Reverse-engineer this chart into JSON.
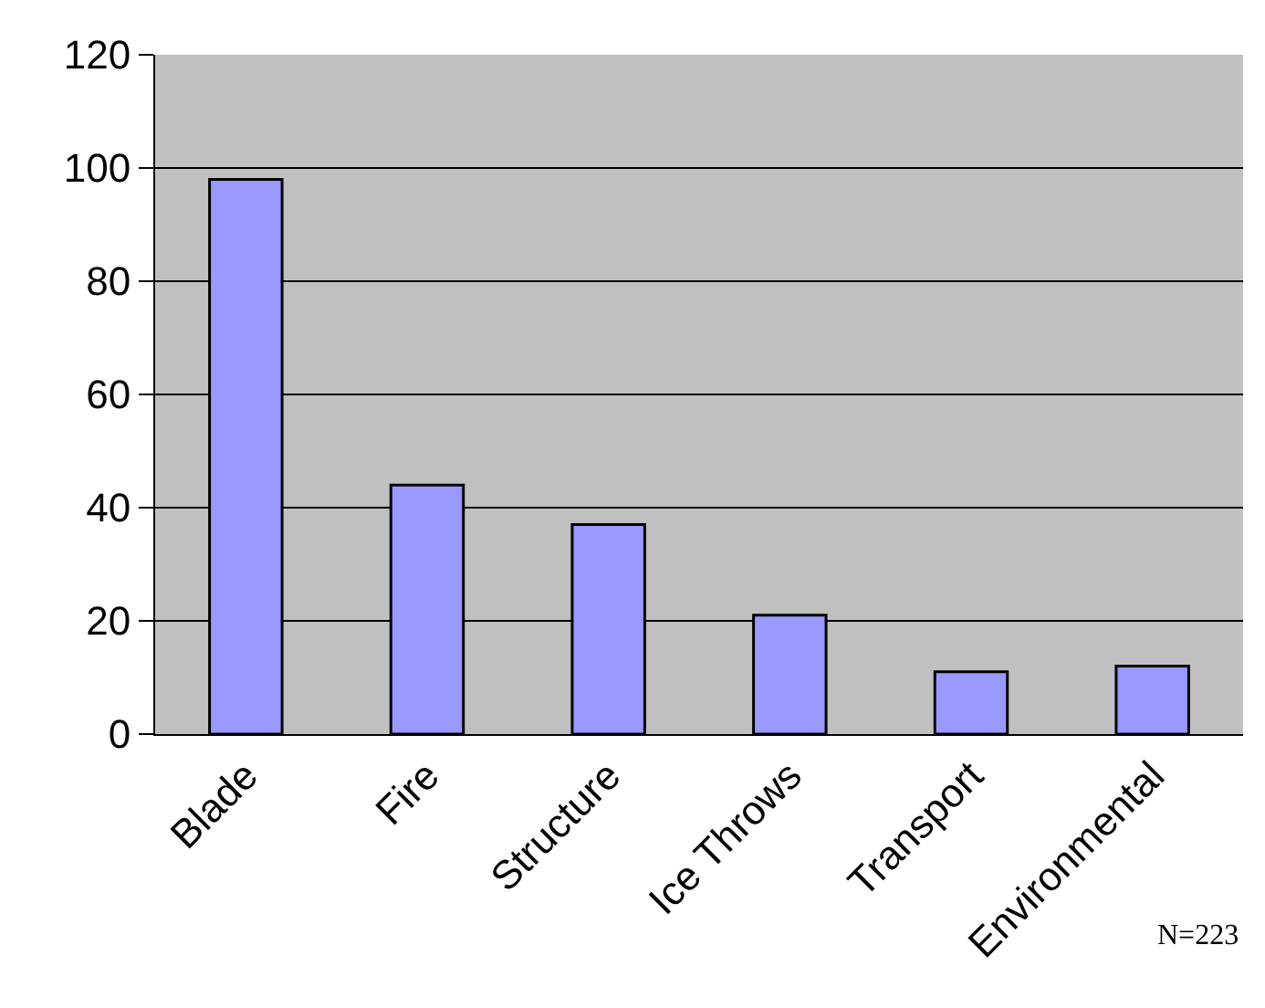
{
  "chart_data": {
    "type": "bar",
    "categories": [
      "Blade",
      "Fire",
      "Structure",
      "Ice Throws",
      "Transport",
      "Environmental"
    ],
    "values": [
      98,
      44,
      37,
      21,
      11,
      12
    ],
    "color": "#9999ff",
    "ylim": [
      0,
      120
    ],
    "yticks": [
      0,
      20,
      40,
      60,
      80,
      100,
      120
    ],
    "grid": "y",
    "annotations": [
      "N=223"
    ]
  }
}
